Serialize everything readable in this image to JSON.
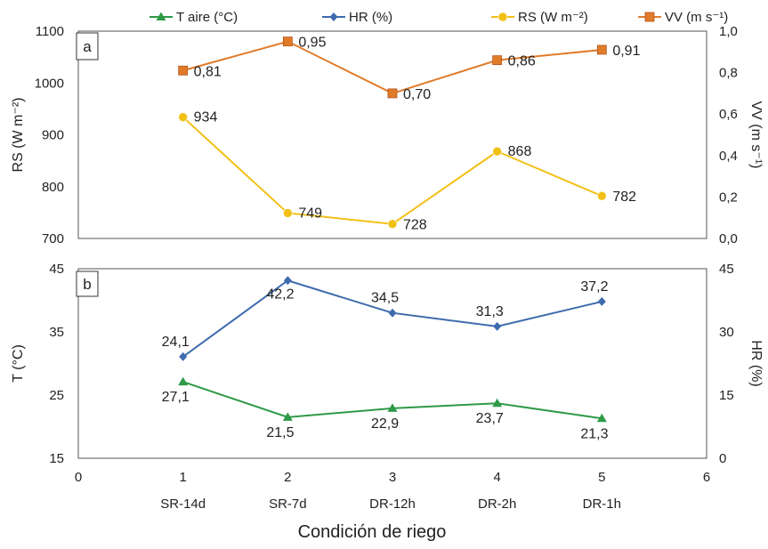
{
  "chart_data": {
    "type": "line",
    "xlabel": "Condición de riego",
    "x_ticks": [
      "0",
      "1",
      "2",
      "3",
      "4",
      "5",
      "6"
    ],
    "x_xlim": [
      0,
      6
    ],
    "x": [
      1,
      2,
      3,
      4,
      5
    ],
    "categories": [
      "SR-14d",
      "SR-7d",
      "DR-12h",
      "DR-2h",
      "DR-1h"
    ],
    "legend": {
      "placement": "top",
      "entries": [
        {
          "name": "T aire (°C)",
          "color": "#2e9a47",
          "marker": "triangle"
        },
        {
          "name": "HR (%)",
          "color": "#3f6bad",
          "marker": "diamond"
        },
        {
          "name": "RS (W m⁻²)",
          "color": "#f2c015",
          "marker": "circle"
        },
        {
          "name": "VV (m s⁻¹)",
          "color": "#e07b2a",
          "marker": "square"
        }
      ]
    },
    "panels": [
      {
        "label": "a",
        "left_axis": {
          "label": "RS (W m⁻²)",
          "ylim": [
            700,
            1100
          ],
          "ticks": [
            "700",
            "800",
            "900",
            "1000",
            "1100"
          ]
        },
        "right_axis": {
          "label": "VV (m s⁻¹)",
          "ylim": [
            0,
            1
          ],
          "ticks": [
            "0,0",
            "0,2",
            "0,4",
            "0,6",
            "0,8",
            "1,0"
          ]
        },
        "series": [
          {
            "name": "RS (W m⁻²)",
            "axis": "left",
            "color": "#f2c015",
            "marker": "circle",
            "values": [
              934,
              749,
              728,
              868,
              782
            ],
            "labels": [
              "934",
              "749",
              "728",
              "868",
              "782"
            ]
          },
          {
            "name": "VV (m s⁻¹)",
            "axis": "right",
            "color": "#e07b2a",
            "marker": "square",
            "values": [
              0.81,
              0.95,
              0.7,
              0.86,
              0.91
            ],
            "labels": [
              "0,81",
              "0,95",
              "0,70",
              "0,86",
              "0,91"
            ]
          }
        ]
      },
      {
        "label": "b",
        "left_axis": {
          "label": "T (°C)",
          "ylim": [
            15,
            45
          ],
          "ticks": [
            "15",
            "25",
            "35",
            "45"
          ]
        },
        "right_axis": {
          "label": "HR (%)",
          "ylim": [
            0,
            45
          ],
          "ticks": [
            "0",
            "15",
            "30",
            "45"
          ]
        },
        "series": [
          {
            "name": "HR (%)",
            "axis": "right",
            "color": "#3f6bad",
            "marker": "diamond",
            "values": [
              24.1,
              42.2,
              34.5,
              31.3,
              37.2
            ],
            "labels": [
              "24,1",
              "42,2",
              "34,5",
              "31,3",
              "37,2"
            ]
          },
          {
            "name": "T aire (°C)",
            "axis": "left",
            "color": "#2e9a47",
            "marker": "triangle",
            "values": [
              27.1,
              21.5,
              22.9,
              23.7,
              21.3
            ],
            "labels": [
              "27,1",
              "21,5",
              "22,9",
              "23,7",
              "21,3"
            ]
          }
        ]
      }
    ]
  }
}
